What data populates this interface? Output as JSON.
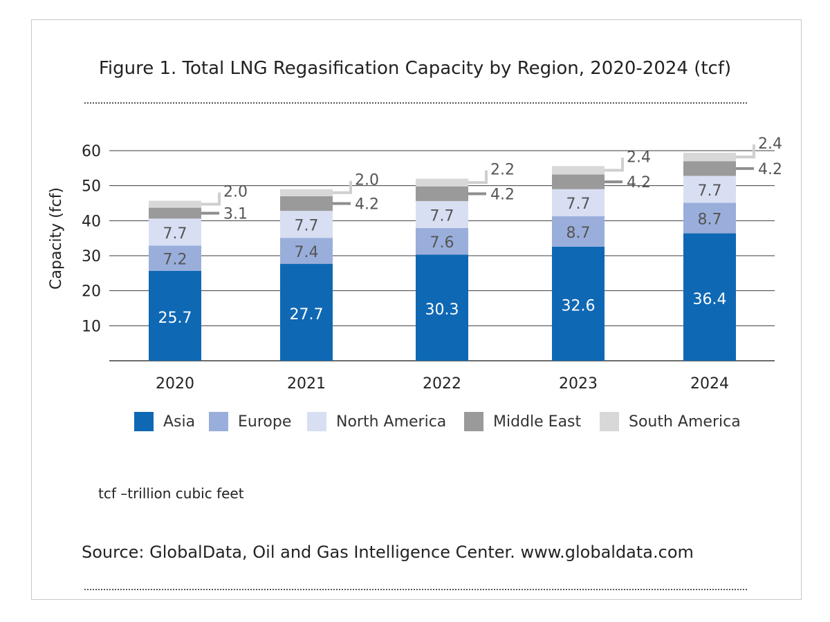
{
  "title": "Figure 1. Total LNG Regasification Capacity by Region, 2020-2024 (tcf)",
  "footnote": "tcf –trillion cubic feet",
  "source": "Source: GlobalData, Oil and Gas Intelligence Center. www.globaldata.com",
  "colors": {
    "asia": "#0f68b4",
    "europe": "#9aaedb",
    "north_america": "#d8dff2",
    "middle_east": "#9a9a9a",
    "south_america": "#d8d8d8",
    "label_dark": "#ffffff",
    "label_mid": "#555555",
    "callout_line": "#8e8e8e",
    "callout_line_light": "#cfcfcf"
  },
  "chart_data": {
    "type": "bar",
    "stacked": true,
    "categories": [
      "2020",
      "2021",
      "2022",
      "2023",
      "2024"
    ],
    "series": [
      {
        "name": "Asia",
        "values": [
          25.7,
          27.7,
          30.3,
          32.6,
          36.4
        ],
        "labels": [
          "25.7",
          "27.7",
          "30.3",
          "32.6",
          "36.4"
        ]
      },
      {
        "name": "Europe",
        "values": [
          7.2,
          7.4,
          7.6,
          8.7,
          8.7
        ],
        "labels": [
          "7.2",
          "7.4",
          "7.6",
          "8.7",
          "8.7"
        ]
      },
      {
        "name": "North America",
        "values": [
          7.7,
          7.7,
          7.7,
          7.7,
          7.7
        ],
        "labels": [
          "7.7",
          "7.7",
          "7.7",
          "7.7",
          "7.7"
        ]
      },
      {
        "name": "Middle East",
        "values": [
          3.1,
          4.2,
          4.2,
          4.2,
          4.2
        ],
        "labels": [
          "3.1",
          "4.2",
          "4.2",
          "4.2",
          "4.2"
        ]
      },
      {
        "name": "South America",
        "values": [
          2.0,
          2.0,
          2.2,
          2.4,
          2.4
        ],
        "labels": [
          "2.0",
          "2.0",
          "2.2",
          "2.4",
          "2.4"
        ]
      }
    ],
    "xlabel": "",
    "ylabel": "Capacity (fcf)",
    "ylim": [
      0,
      60
    ],
    "yticks": [
      "10",
      "20",
      "30",
      "40",
      "50",
      "60"
    ],
    "grid": true,
    "legend": "bottom"
  }
}
